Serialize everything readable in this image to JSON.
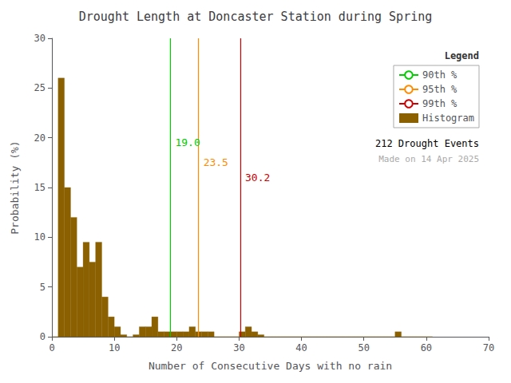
{
  "chart_data": {
    "type": "histogram",
    "title": "Drought Length at Doncaster Station during Spring",
    "xlabel": "Number of Consecutive Days with no rain",
    "ylabel": "Probability (%)",
    "xlim": [
      0,
      70
    ],
    "ylim": [
      0,
      30
    ],
    "xticks": [
      0,
      10,
      20,
      30,
      40,
      50,
      60,
      70
    ],
    "yticks": [
      0,
      5,
      10,
      15,
      20,
      25,
      30
    ],
    "grid": false,
    "legend": "upper right",
    "legend_title": "Legend",
    "series": [
      {
        "name": "90th %",
        "type": "vline",
        "color": "#00CC00",
        "x": 19.0,
        "label": "19.0",
        "label_y": 19.5
      },
      {
        "name": "95th %",
        "type": "vline",
        "color": "#FF8C00",
        "x": 23.5,
        "label": "23.5",
        "label_y": 17.5
      },
      {
        "name": "99th %",
        "type": "vline",
        "color": "#CC0000",
        "x": 30.2,
        "label": "30.2",
        "label_y": 16.0
      },
      {
        "name": "Histogram",
        "type": "bar",
        "color": "#8B6000",
        "bins": [
          0,
          1,
          2,
          3,
          4,
          5,
          6,
          7,
          8,
          9,
          10,
          11,
          12,
          13,
          14,
          15,
          16,
          17,
          18,
          19,
          20,
          21,
          22,
          23,
          24,
          25,
          26,
          27,
          28,
          29,
          30,
          31,
          32,
          33,
          34,
          35,
          36,
          37,
          38,
          39,
          40,
          41,
          42,
          43,
          44,
          45,
          46,
          47,
          48,
          49,
          50,
          51,
          52,
          53,
          54,
          55,
          56,
          57,
          58,
          59,
          60,
          61
        ],
        "values": [
          0.0,
          26.0,
          15.0,
          12.0,
          7.0,
          9.5,
          7.5,
          9.5,
          4.0,
          2.0,
          1.0,
          0.2,
          0.0,
          0.2,
          1.0,
          1.0,
          2.0,
          0.5,
          0.5,
          0.5,
          0.5,
          0.5,
          1.0,
          0.5,
          0.5,
          0.5,
          0.0,
          0.0,
          0.0,
          0.0,
          0.5,
          1.0,
          0.5,
          0.2,
          0.0,
          0.0,
          0.0,
          0.0,
          0.0,
          0.0,
          0.0,
          0.0,
          0.0,
          0.0,
          0.0,
          0.0,
          0.0,
          0.0,
          0.0,
          0.0,
          0.0,
          0.0,
          0.0,
          0.0,
          0.0,
          0.5,
          0.0,
          0.0,
          0.0,
          0.0,
          0.0
        ]
      }
    ],
    "annotations": [
      {
        "text": "212 Drought Events"
      },
      {
        "text": "Made on 14 Apr 2025",
        "color": "#aaaaaa"
      }
    ]
  }
}
